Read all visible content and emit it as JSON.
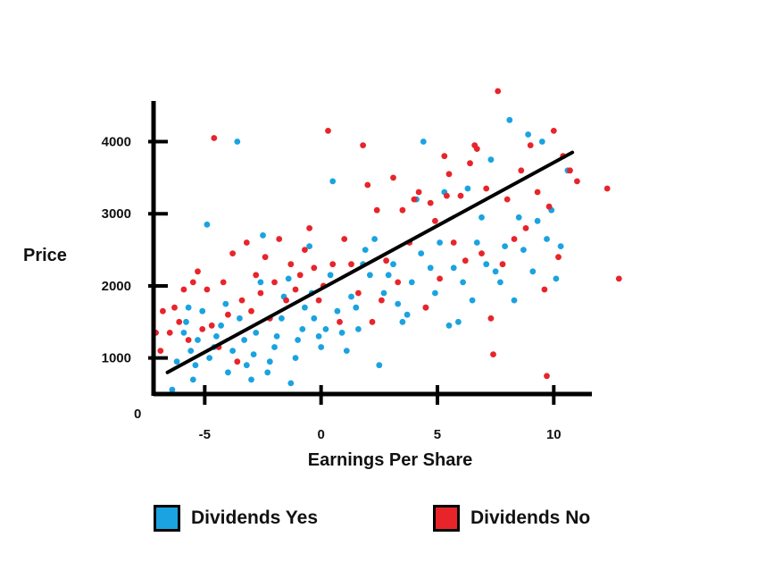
{
  "chart_data": {
    "type": "scatter",
    "title": "",
    "xlabel": "Earnings Per Share",
    "ylabel": "Price",
    "origin_label": "0",
    "x_ticks": [
      -5,
      0,
      5,
      10
    ],
    "y_ticks": [
      1000,
      2000,
      3000,
      4000
    ],
    "xlim": [
      -7.2,
      11.6
    ],
    "ylim": [
      500,
      4750
    ],
    "grid": false,
    "legend": "bottom",
    "trend_line": {
      "x": [
        -6.6,
        10.8
      ],
      "y": [
        800,
        3850
      ]
    },
    "series": [
      {
        "name": "Dividends Yes",
        "color": "#1aa3e0",
        "points": [
          [
            -6.4,
            560
          ],
          [
            -6.2,
            950
          ],
          [
            -5.9,
            1350
          ],
          [
            -5.8,
            1500
          ],
          [
            -5.7,
            1700
          ],
          [
            -5.6,
            1100
          ],
          [
            -5.5,
            700
          ],
          [
            -5.4,
            900
          ],
          [
            -5.3,
            1250
          ],
          [
            -5.1,
            1650
          ],
          [
            -4.9,
            2850
          ],
          [
            -4.8,
            1000
          ],
          [
            -4.6,
            1150
          ],
          [
            -4.5,
            1300
          ],
          [
            -4.3,
            1450
          ],
          [
            -4.1,
            1750
          ],
          [
            -4.0,
            800
          ],
          [
            -3.8,
            1100
          ],
          [
            -3.6,
            4000
          ],
          [
            -3.5,
            1550
          ],
          [
            -3.3,
            1250
          ],
          [
            -3.2,
            900
          ],
          [
            -3.0,
            700
          ],
          [
            -2.9,
            1050
          ],
          [
            -2.8,
            1350
          ],
          [
            -2.6,
            2050
          ],
          [
            -2.5,
            2700
          ],
          [
            -2.3,
            800
          ],
          [
            -2.2,
            950
          ],
          [
            -2.0,
            1150
          ],
          [
            -1.9,
            1300
          ],
          [
            -1.7,
            1550
          ],
          [
            -1.6,
            1850
          ],
          [
            -1.4,
            2100
          ],
          [
            -1.3,
            650
          ],
          [
            -1.1,
            1000
          ],
          [
            -1.0,
            1250
          ],
          [
            -0.8,
            1400
          ],
          [
            -0.7,
            1700
          ],
          [
            -0.5,
            2550
          ],
          [
            -0.4,
            1900
          ],
          [
            -0.3,
            1550
          ],
          [
            -0.1,
            1300
          ],
          [
            0.0,
            1150
          ],
          [
            0.2,
            1400
          ],
          [
            0.4,
            2150
          ],
          [
            0.5,
            3450
          ],
          [
            0.7,
            1650
          ],
          [
            0.9,
            1350
          ],
          [
            1.1,
            1100
          ],
          [
            1.3,
            1850
          ],
          [
            1.5,
            1700
          ],
          [
            1.6,
            1400
          ],
          [
            1.8,
            2300
          ],
          [
            1.9,
            2500
          ],
          [
            2.1,
            2150
          ],
          [
            2.3,
            2650
          ],
          [
            2.5,
            900
          ],
          [
            2.7,
            1900
          ],
          [
            2.9,
            2150
          ],
          [
            3.1,
            2300
          ],
          [
            3.3,
            1750
          ],
          [
            3.5,
            1500
          ],
          [
            3.7,
            1600
          ],
          [
            3.9,
            2050
          ],
          [
            4.1,
            3200
          ],
          [
            4.3,
            2450
          ],
          [
            4.4,
            4000
          ],
          [
            4.5,
            1700
          ],
          [
            4.7,
            2250
          ],
          [
            4.9,
            1900
          ],
          [
            5.1,
            2600
          ],
          [
            5.3,
            3300
          ],
          [
            5.5,
            1450
          ],
          [
            5.7,
            2250
          ],
          [
            5.9,
            1500
          ],
          [
            6.1,
            2050
          ],
          [
            6.3,
            3350
          ],
          [
            6.5,
            1800
          ],
          [
            6.7,
            2600
          ],
          [
            6.9,
            2950
          ],
          [
            7.1,
            2300
          ],
          [
            7.3,
            3750
          ],
          [
            7.5,
            2200
          ],
          [
            7.7,
            2050
          ],
          [
            7.9,
            2550
          ],
          [
            8.1,
            4300
          ],
          [
            8.3,
            1800
          ],
          [
            8.5,
            2950
          ],
          [
            8.7,
            2500
          ],
          [
            8.9,
            4100
          ],
          [
            9.1,
            2200
          ],
          [
            9.3,
            2900
          ],
          [
            9.5,
            4000
          ],
          [
            9.7,
            2650
          ],
          [
            9.9,
            3050
          ],
          [
            10.1,
            2100
          ],
          [
            10.3,
            2550
          ],
          [
            10.6,
            3600
          ]
        ]
      },
      {
        "name": "Dividends No",
        "color": "#e8242b",
        "points": [
          [
            -7.1,
            1350
          ],
          [
            -6.9,
            1100
          ],
          [
            -6.8,
            1650
          ],
          [
            -6.5,
            1350
          ],
          [
            -6.3,
            1700
          ],
          [
            -6.1,
            1500
          ],
          [
            -5.9,
            1950
          ],
          [
            -5.7,
            1250
          ],
          [
            -5.5,
            2050
          ],
          [
            -5.3,
            2200
          ],
          [
            -5.1,
            1400
          ],
          [
            -4.9,
            1950
          ],
          [
            -4.7,
            1450
          ],
          [
            -4.6,
            4050
          ],
          [
            -4.4,
            1150
          ],
          [
            -4.2,
            2050
          ],
          [
            -4.0,
            1600
          ],
          [
            -3.8,
            2450
          ],
          [
            -3.6,
            950
          ],
          [
            -3.4,
            1800
          ],
          [
            -3.2,
            2600
          ],
          [
            -3.0,
            1650
          ],
          [
            -2.8,
            2150
          ],
          [
            -2.6,
            1900
          ],
          [
            -2.4,
            2400
          ],
          [
            -2.2,
            1550
          ],
          [
            -2.0,
            2050
          ],
          [
            -1.8,
            2650
          ],
          [
            -1.5,
            1800
          ],
          [
            -1.3,
            2300
          ],
          [
            -1.1,
            1950
          ],
          [
            -0.9,
            2150
          ],
          [
            -0.7,
            2500
          ],
          [
            -0.5,
            2800
          ],
          [
            -0.3,
            2250
          ],
          [
            -0.1,
            1800
          ],
          [
            0.1,
            2000
          ],
          [
            0.3,
            4150
          ],
          [
            0.5,
            2300
          ],
          [
            0.8,
            1500
          ],
          [
            1.0,
            2650
          ],
          [
            1.3,
            2300
          ],
          [
            1.6,
            1900
          ],
          [
            1.8,
            3950
          ],
          [
            2.0,
            3400
          ],
          [
            2.2,
            1500
          ],
          [
            2.4,
            3050
          ],
          [
            2.6,
            1800
          ],
          [
            2.8,
            2350
          ],
          [
            3.1,
            3500
          ],
          [
            3.3,
            2050
          ],
          [
            3.5,
            3050
          ],
          [
            3.8,
            2600
          ],
          [
            4.0,
            3200
          ],
          [
            4.2,
            3300
          ],
          [
            4.5,
            1700
          ],
          [
            4.7,
            3150
          ],
          [
            4.9,
            2900
          ],
          [
            5.1,
            2100
          ],
          [
            5.3,
            3800
          ],
          [
            5.5,
            3550
          ],
          [
            5.7,
            2600
          ],
          [
            6.0,
            3250
          ],
          [
            6.2,
            2350
          ],
          [
            6.4,
            3700
          ],
          [
            6.7,
            3900
          ],
          [
            6.9,
            2450
          ],
          [
            7.1,
            3350
          ],
          [
            7.3,
            1550
          ],
          [
            7.4,
            1050
          ],
          [
            7.6,
            4700
          ],
          [
            7.8,
            2300
          ],
          [
            8.0,
            3200
          ],
          [
            8.3,
            2650
          ],
          [
            8.6,
            3600
          ],
          [
            8.8,
            2800
          ],
          [
            9.0,
            3950
          ],
          [
            9.3,
            3300
          ],
          [
            9.6,
            1950
          ],
          [
            9.8,
            3100
          ],
          [
            10.0,
            4150
          ],
          [
            10.2,
            2400
          ],
          [
            10.4,
            3800
          ],
          [
            10.7,
            3600
          ],
          [
            11.0,
            3450
          ],
          [
            9.7,
            750
          ],
          [
            12.3,
            3350
          ],
          [
            12.8,
            2100
          ],
          [
            6.6,
            3950
          ],
          [
            5.4,
            3250
          ]
        ]
      }
    ]
  },
  "legend": {
    "yes_label": "Dividends Yes",
    "no_label": "Dividends No"
  }
}
